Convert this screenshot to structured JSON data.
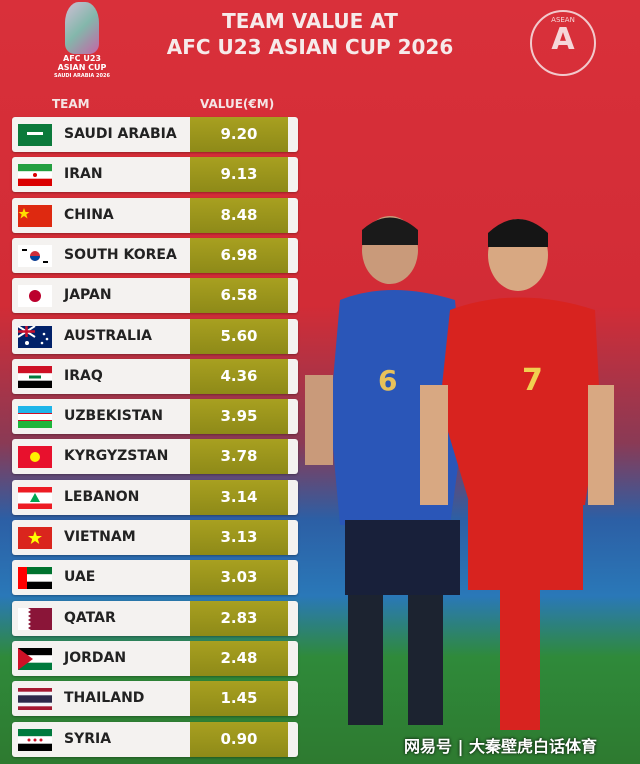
{
  "header": {
    "title_line1": "TEAM VALUE AT",
    "title_line2": "AFC U23 ASIAN CUP 2026",
    "cup_logo_text": [
      "AFC U23",
      "ASIAN CUP",
      "SAUDI ARABIA 2026"
    ],
    "asean_logo_text": "ASEAN",
    "asean_logo_letter": "A"
  },
  "watermark": "网易号 | 大秦壁虎白话体育",
  "colors": {
    "value_cell": "#9c9620",
    "background": "#d9303a"
  },
  "chart_data": {
    "type": "table",
    "columns": [
      "TEAM",
      "VALUE(€M)"
    ],
    "categories": [
      "SAUDI ARABIA",
      "IRAN",
      "CHINA",
      "SOUTH KOREA",
      "JAPAN",
      "AUSTRALIA",
      "IRAQ",
      "UZBEKISTAN",
      "KYRGYZSTAN",
      "LEBANON",
      "VIETNAM",
      "UAE",
      "QATAR",
      "JORDAN",
      "THAILAND",
      "SYRIA"
    ],
    "values": [
      "9.20",
      "9.13",
      "8.48",
      "6.98",
      "6.58",
      "5.60",
      "4.36",
      "3.95",
      "3.78",
      "3.14",
      "3.13",
      "3.03",
      "2.83",
      "2.48",
      "1.45",
      "0.90"
    ],
    "flag_icons": [
      "saudi-arabia-flag",
      "iran-flag",
      "china-flag",
      "south-korea-flag",
      "japan-flag",
      "australia-flag",
      "iraq-flag",
      "uzbekistan-flag",
      "kyrgyzstan-flag",
      "lebanon-flag",
      "vietnam-flag",
      "uae-flag",
      "qatar-flag",
      "jordan-flag",
      "thailand-flag",
      "syria-flag"
    ]
  }
}
